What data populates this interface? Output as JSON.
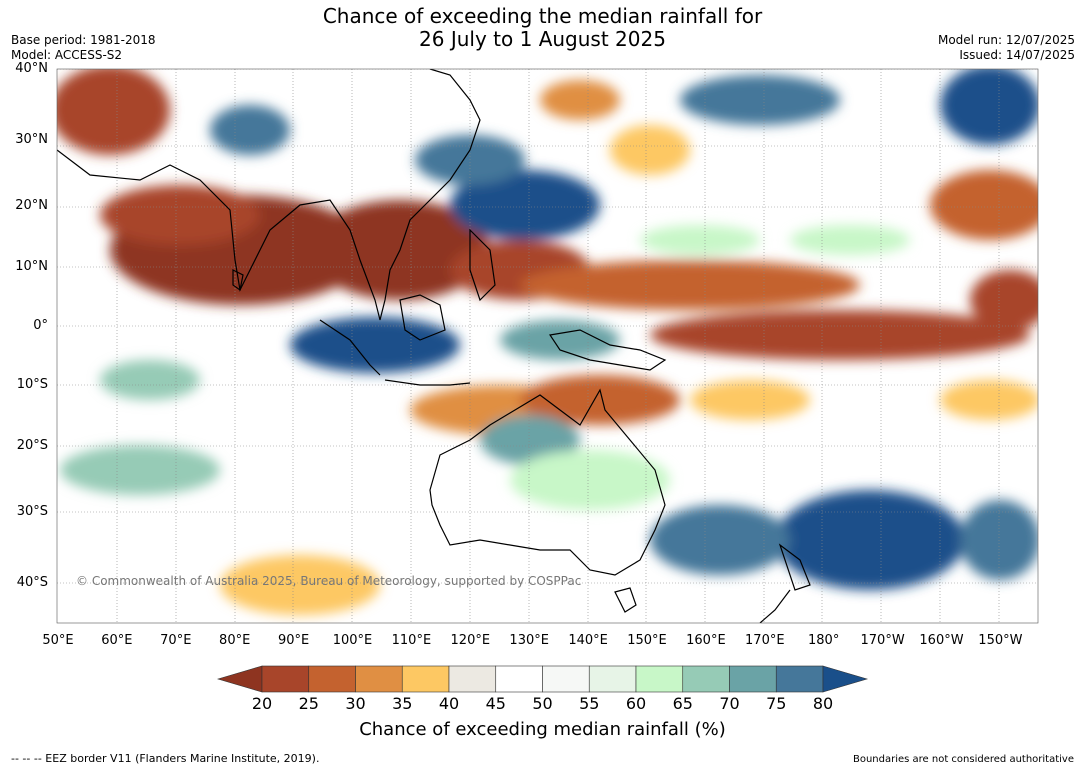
{
  "title": {
    "line1": "Chance of exceeding the median rainfall for",
    "line2": "26 July to 1 August 2025"
  },
  "meta": {
    "base_period": "Base period: 1981-2018",
    "model": "Model: ACCESS-S2",
    "model_run": "Model run: 12/07/2025",
    "issued": "Issued: 14/07/2025"
  },
  "lat_labels": [
    "40°N",
    "30°N",
    "20°N",
    "10°N",
    "0°",
    "10°S",
    "20°S",
    "30°S",
    "40°S"
  ],
  "lon_labels": [
    "50°E",
    "60°E",
    "70°E",
    "80°E",
    "90°E",
    "100°E",
    "110°E",
    "120°E",
    "130°E",
    "140°E",
    "150°E",
    "160°E",
    "170°E",
    "180°",
    "170°W",
    "160°W",
    "150°W"
  ],
  "copyright": "© Commonwealth of Australia 2025, Bureau of Meteorology, supported by COSPPac",
  "colorbar": {
    "title": "Chance of exceeding median rainfall (%)",
    "ticks": [
      "20",
      "25",
      "30",
      "35",
      "40",
      "45",
      "50",
      "55",
      "60",
      "65",
      "70",
      "75",
      "80"
    ],
    "colors": [
      "#8e3420",
      "#a8452a",
      "#c4622f",
      "#e08f43",
      "#fdc863",
      "#ece9e2",
      "#ffffff",
      "#f6f8f6",
      "#e7f4e7",
      "#c8f7c8",
      "#96cbb6",
      "#6aa3a6",
      "#45779a",
      "#1a4f8a"
    ]
  },
  "footer": {
    "left": "--  --  -- EEZ border V11 (Flanders Marine Institute, 2019).",
    "right": "Boundaries are not considered authoritative"
  }
}
